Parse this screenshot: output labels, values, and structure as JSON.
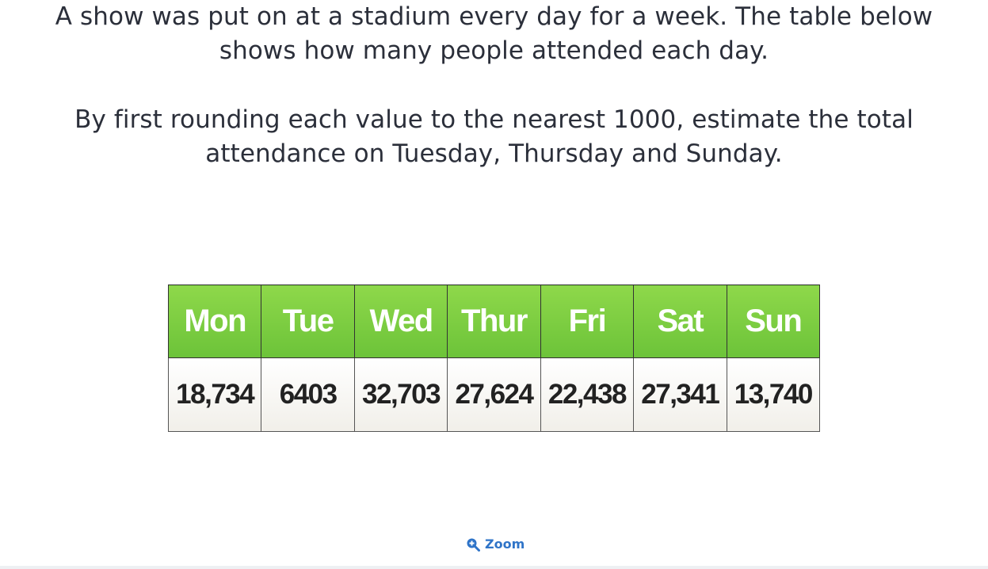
{
  "question": {
    "line1": "A show was put on at a stadium every day for a week. The table below",
    "line2": "shows how many people attended each day.",
    "line3": "By first rounding each value to the nearest 1000, estimate the total",
    "line4": "attendance on Tuesday, Thursday and Sunday."
  },
  "table": {
    "headers": [
      "Mon",
      "Tue",
      "Wed",
      "Thur",
      "Fri",
      "Sat",
      "Sun"
    ],
    "values": [
      "18,734",
      "6403",
      "32,703",
      "27,624",
      "22,438",
      "27,341",
      "13,740"
    ],
    "header_color": "#7acb3f"
  },
  "zoom": {
    "label": "Zoom",
    "icon": "zoom-in-icon",
    "color": "#2f74c8"
  }
}
